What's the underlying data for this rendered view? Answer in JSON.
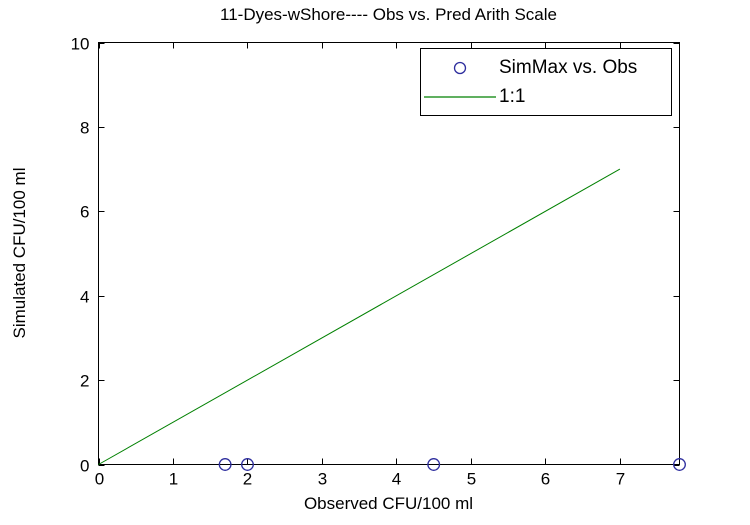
{
  "figure": {
    "background": "#ffffff",
    "axis_color": "#000000",
    "text_color": "#000000"
  },
  "chart_data": {
    "type": "scatter",
    "title": "11-Dyes-wShore---- Obs vs. Pred Arith Scale",
    "xlabel": "Observed CFU/100 ml",
    "ylabel": "Simulated CFU/100 ml",
    "xlim": [
      0,
      7.8
    ],
    "ylim": [
      0,
      10
    ],
    "xticks": [
      0,
      1,
      2,
      3,
      4,
      5,
      6,
      7
    ],
    "yticks": [
      0,
      2,
      4,
      6,
      8,
      10
    ],
    "grid": false,
    "series": [
      {
        "name": "SimMax vs. Obs",
        "type": "scatter",
        "marker": "circle",
        "color": "#2E2E9E",
        "points": [
          [
            1.7,
            0
          ],
          [
            2.0,
            0
          ],
          [
            4.5,
            0
          ],
          [
            7.8,
            0
          ]
        ]
      },
      {
        "name": "1:1",
        "type": "line",
        "color": "#008000",
        "points": [
          [
            0,
            0
          ],
          [
            7,
            7
          ]
        ]
      }
    ],
    "legend": {
      "position": "top-right",
      "entries": [
        {
          "label": "SimMax vs. Obs",
          "marker": "circle",
          "color": "#2E2E9E"
        },
        {
          "label": "1:1",
          "marker": "line",
          "color": "#008000"
        }
      ]
    }
  }
}
